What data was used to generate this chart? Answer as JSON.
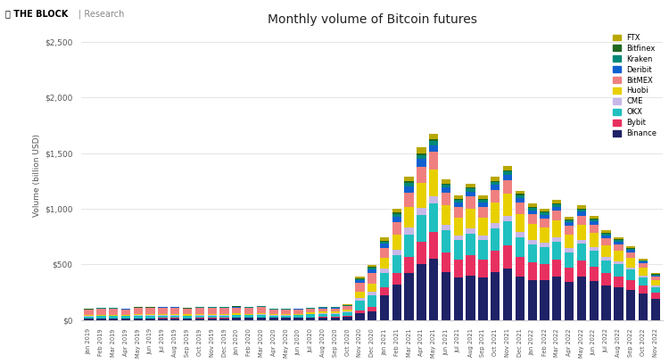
{
  "title": "Monthly volume of Bitcoin futures",
  "ylabel": "Volume (billion USD)",
  "categories": [
    "Jan 2019",
    "Feb 2019",
    "Mar 2019",
    "Apr 2019",
    "May 2019",
    "Jun 2019",
    "Jul 2019",
    "Aug 2019",
    "Sep 2019",
    "Oct 2019",
    "Nov 2019",
    "Dec 2019",
    "Jan 2020",
    "Feb 2020",
    "Mar 2020",
    "Apr 2020",
    "May 2020",
    "Jun 2020",
    "Jul 2020",
    "Aug 2020",
    "Sep 2020",
    "Oct 2020",
    "Nov 2020",
    "Dec 2020",
    "Jan 2021",
    "Feb 2021",
    "Mar 2021",
    "Apr 2021",
    "May 2021",
    "Jun 2021",
    "Jul 2021",
    "Aug 2021",
    "Sep 2021",
    "Oct 2021",
    "Nov 2021",
    "Dec 2021",
    "Jan 2022",
    "Feb 2022",
    "Mar 2022",
    "Apr 2022",
    "May 2022",
    "Jun 2022",
    "Jul 2022",
    "Aug 2022",
    "Sep 2022",
    "Oct 2022",
    "Nov 2022"
  ],
  "series": {
    "Binance": [
      10,
      12,
      12,
      12,
      14,
      14,
      15,
      15,
      14,
      15,
      15,
      15,
      18,
      18,
      20,
      18,
      18,
      18,
      20,
      22,
      22,
      25,
      60,
      80,
      220,
      320,
      420,
      500,
      550,
      430,
      380,
      400,
      380,
      430,
      460,
      390,
      360,
      360,
      390,
      340,
      390,
      350,
      310,
      290,
      270,
      240,
      190
    ],
    "Bybit": [
      2,
      2,
      2,
      2,
      2,
      2,
      2,
      2,
      2,
      2,
      2,
      2,
      3,
      3,
      3,
      3,
      3,
      3,
      4,
      5,
      5,
      8,
      25,
      35,
      70,
      100,
      150,
      200,
      240,
      180,
      160,
      180,
      160,
      190,
      210,
      175,
      155,
      140,
      150,
      130,
      145,
      130,
      110,
      100,
      85,
      68,
      52
    ],
    "OKX": [
      18,
      20,
      20,
      20,
      22,
      22,
      22,
      22,
      20,
      22,
      22,
      22,
      22,
      20,
      22,
      18,
      18,
      20,
      25,
      28,
      28,
      32,
      90,
      110,
      130,
      160,
      200,
      240,
      260,
      195,
      175,
      195,
      175,
      200,
      215,
      180,
      160,
      155,
      165,
      140,
      150,
      140,
      118,
      108,
      95,
      75,
      55
    ],
    "CME": [
      3,
      3,
      3,
      3,
      3,
      3,
      3,
      3,
      3,
      3,
      3,
      3,
      4,
      4,
      4,
      4,
      4,
      4,
      4,
      6,
      6,
      8,
      22,
      30,
      38,
      50,
      62,
      70,
      65,
      48,
      43,
      48,
      43,
      50,
      54,
      45,
      40,
      36,
      40,
      34,
      37,
      34,
      28,
      26,
      22,
      18,
      13
    ],
    "Huobi": [
      8,
      8,
      8,
      8,
      10,
      10,
      10,
      10,
      10,
      10,
      10,
      10,
      10,
      10,
      10,
      8,
      8,
      10,
      12,
      14,
      14,
      18,
      55,
      70,
      100,
      140,
      180,
      220,
      240,
      180,
      160,
      178,
      160,
      183,
      196,
      164,
      145,
      138,
      148,
      125,
      135,
      125,
      105,
      96,
      84,
      66,
      48
    ],
    "BitMEX": [
      50,
      55,
      55,
      50,
      55,
      55,
      60,
      58,
      50,
      55,
      55,
      55,
      55,
      50,
      55,
      40,
      40,
      38,
      32,
      28,
      28,
      30,
      80,
      95,
      90,
      110,
      130,
      150,
      155,
      110,
      98,
      108,
      98,
      112,
      120,
      100,
      88,
      82,
      88,
      75,
      82,
      75,
      63,
      58,
      50,
      40,
      30
    ],
    "Deribit": [
      3,
      3,
      3,
      3,
      4,
      4,
      4,
      4,
      3,
      4,
      4,
      4,
      5,
      5,
      5,
      4,
      4,
      4,
      5,
      6,
      6,
      8,
      22,
      30,
      36,
      48,
      58,
      65,
      62,
      46,
      41,
      46,
      41,
      47,
      51,
      43,
      38,
      35,
      38,
      32,
      35,
      32,
      27,
      25,
      21,
      17,
      12
    ],
    "Kraken": [
      2,
      2,
      2,
      2,
      2,
      2,
      2,
      2,
      2,
      2,
      2,
      2,
      3,
      3,
      3,
      2,
      2,
      3,
      3,
      4,
      4,
      5,
      12,
      16,
      20,
      26,
      32,
      36,
      34,
      25,
      22,
      25,
      22,
      26,
      28,
      23,
      21,
      19,
      21,
      18,
      19,
      18,
      15,
      14,
      12,
      9,
      7
    ],
    "Bitfinex": [
      1,
      1,
      1,
      1,
      1,
      1,
      1,
      1,
      1,
      1,
      1,
      1,
      1,
      1,
      1,
      1,
      1,
      1,
      1,
      2,
      2,
      2,
      6,
      8,
      10,
      13,
      16,
      18,
      17,
      12,
      11,
      12,
      11,
      13,
      14,
      12,
      10,
      10,
      10,
      9,
      9,
      9,
      7,
      7,
      6,
      5,
      4
    ],
    "FTX": [
      0,
      0,
      0,
      0,
      0,
      0,
      0,
      0,
      0,
      0,
      0,
      0,
      0,
      0,
      0,
      0,
      0,
      0,
      0,
      4,
      4,
      6,
      16,
      22,
      28,
      36,
      44,
      50,
      47,
      34,
      30,
      34,
      30,
      35,
      37,
      31,
      28,
      26,
      28,
      24,
      26,
      24,
      20,
      18,
      16,
      12,
      9
    ]
  },
  "colors": {
    "Binance": "#1e2266",
    "Bybit": "#e83060",
    "OKX": "#20c0c0",
    "CME": "#c8b8e8",
    "Huobi": "#e8d000",
    "BitMEX": "#f08080",
    "Deribit": "#1060d0",
    "Kraken": "#008878",
    "Bitfinex": "#206820",
    "FTX": "#b8a800"
  },
  "legend_order": [
    "FTX",
    "Bitfinex",
    "Kraken",
    "Deribit",
    "BitMEX",
    "Huobi",
    "CME",
    "OKX",
    "Bybit",
    "Binance"
  ],
  "stack_order": [
    "Binance",
    "Bybit",
    "OKX",
    "CME",
    "Huobi",
    "BitMEX",
    "Deribit",
    "Kraken",
    "Bitfinex",
    "FTX"
  ],
  "yticks": [
    0,
    500,
    1000,
    1500,
    2000,
    2500
  ],
  "ytick_labels": [
    "$0",
    "$500",
    "$1,000",
    "$1,500",
    "$2,000",
    "$2,500"
  ],
  "ylim": [
    0,
    2600
  ],
  "background_color": "#ffffff",
  "grid_color": "#e0e0e0",
  "title_fontsize": 10,
  "axis_fontsize": 6.5
}
